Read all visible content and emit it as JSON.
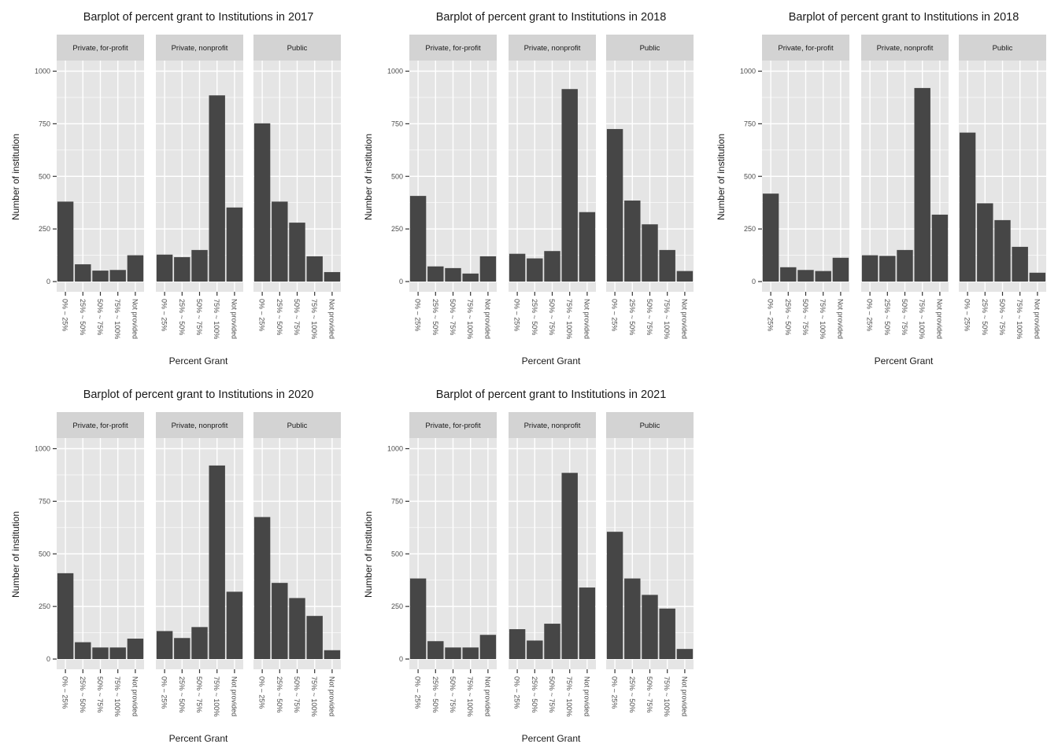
{
  "style": {
    "panel_bg": "#e5e5e5",
    "strip_bg": "#d3d3d3",
    "grid": "#ffffff",
    "bar": "#464646",
    "tick_text": "#4d4d4d",
    "text": "#1a1a1a"
  },
  "chart_data": [
    {
      "type": "bar",
      "title": "Barplot of percent grant to Institutions in 2017",
      "xlabel": "Percent Grant",
      "ylabel": "Number of institution",
      "ylim": [
        0,
        1100
      ],
      "yticks": [
        0,
        250,
        500,
        750,
        1000
      ],
      "grid": true,
      "categories": [
        "0% ~ 25%",
        "25% ~ 50%",
        "50% ~ 75%",
        "75% ~ 100%",
        "Not provided"
      ],
      "facets": [
        {
          "name": "Private, for-profit",
          "values": [
            380,
            82,
            52,
            55,
            125
          ]
        },
        {
          "name": "Private, nonprofit",
          "values": [
            128,
            116,
            150,
            885,
            352
          ]
        },
        {
          "name": "Public",
          "values": [
            752,
            380,
            280,
            120,
            45
          ]
        }
      ]
    },
    {
      "type": "bar",
      "title": "Barplot of percent grant to Institutions in 2018",
      "xlabel": "Percent Grant",
      "ylabel": "Number of institution",
      "ylim": [
        0,
        1100
      ],
      "yticks": [
        0,
        250,
        500,
        750,
        1000
      ],
      "grid": true,
      "categories": [
        "0% ~ 25%",
        "25% ~ 50%",
        "50% ~ 75%",
        "75% ~ 100%",
        "Not provided"
      ],
      "facets": [
        {
          "name": "Private, for-profit",
          "values": [
            407,
            72,
            64,
            38,
            120
          ]
        },
        {
          "name": "Private, nonprofit",
          "values": [
            132,
            110,
            145,
            915,
            330
          ]
        },
        {
          "name": "Public",
          "values": [
            725,
            385,
            272,
            150,
            50
          ]
        }
      ]
    },
    {
      "type": "bar",
      "title": "Barplot of percent grant to Institutions in 2018",
      "xlabel": "Percent Grant",
      "ylabel": "Number of institution",
      "ylim": [
        0,
        1100
      ],
      "yticks": [
        0,
        250,
        500,
        750,
        1000
      ],
      "grid": true,
      "categories": [
        "0% ~ 25%",
        "25% ~ 50%",
        "50% ~ 75%",
        "75% ~ 100%",
        "Not provided"
      ],
      "facets": [
        {
          "name": "Private, for-profit",
          "values": [
            418,
            68,
            55,
            50,
            113
          ]
        },
        {
          "name": "Private, nonprofit",
          "values": [
            125,
            122,
            150,
            920,
            318
          ]
        },
        {
          "name": "Public",
          "values": [
            708,
            372,
            292,
            165,
            42
          ]
        }
      ]
    },
    {
      "type": "bar",
      "title": "Barplot of percent grant to Institutions in 2020",
      "xlabel": "Percent Grant",
      "ylabel": "Number of institution",
      "ylim": [
        0,
        1100
      ],
      "yticks": [
        0,
        250,
        500,
        750,
        1000
      ],
      "grid": true,
      "categories": [
        "0% ~ 25%",
        "25% ~ 50%",
        "50% ~ 75%",
        "75% ~ 100%",
        "Not provided"
      ],
      "facets": [
        {
          "name": "Private, for-profit",
          "values": [
            408,
            80,
            55,
            55,
            97
          ]
        },
        {
          "name": "Private, nonprofit",
          "values": [
            133,
            100,
            152,
            920,
            320
          ]
        },
        {
          "name": "Public",
          "values": [
            675,
            362,
            290,
            205,
            42
          ]
        }
      ]
    },
    {
      "type": "bar",
      "title": "Barplot of percent grant to Institutions in 2021",
      "xlabel": "Percent Grant",
      "ylabel": "Number of institution",
      "ylim": [
        0,
        1100
      ],
      "yticks": [
        0,
        250,
        500,
        750,
        1000
      ],
      "grid": true,
      "categories": [
        "0% ~ 25%",
        "25% ~ 50%",
        "50% ~ 75%",
        "75% ~ 100%",
        "Not provided"
      ],
      "facets": [
        {
          "name": "Private, for-profit",
          "values": [
            383,
            85,
            55,
            55,
            115
          ]
        },
        {
          "name": "Private, nonprofit",
          "values": [
            142,
            88,
            168,
            885,
            340
          ]
        },
        {
          "name": "Public",
          "values": [
            605,
            383,
            305,
            240,
            48
          ]
        }
      ]
    }
  ]
}
